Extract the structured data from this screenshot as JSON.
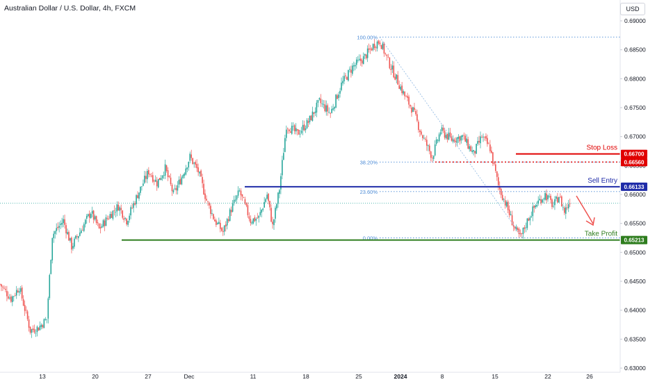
{
  "header": {
    "title": "Australian Dollar / U.S. Dollar, 4h, FXCM",
    "currency_button": "USD"
  },
  "chart_data": {
    "type": "candlestick",
    "symbol": "AUD/USD",
    "timeframe": "4h",
    "ylim": [
      0.63,
      0.69
    ],
    "y_ticks": [
      "0.69000",
      "0.68500",
      "0.68000",
      "0.67500",
      "0.67000",
      "0.66500",
      "0.66000",
      "0.65500",
      "0.65000",
      "0.64500",
      "0.64000",
      "0.63500",
      "0.63000"
    ],
    "x_ticks": [
      "13",
      "20",
      "27",
      "Dec",
      "11",
      "18",
      "25",
      "2024",
      "8",
      "15",
      "22",
      "26"
    ],
    "up_color": "#26a69a",
    "down_color": "#ef5350",
    "close_path": [
      {
        "i": 0,
        "c": 0.6445
      },
      {
        "i": 8,
        "c": 0.642
      },
      {
        "i": 14,
        "c": 0.644
      },
      {
        "i": 22,
        "c": 0.6365
      },
      {
        "i": 28,
        "c": 0.637
      },
      {
        "i": 34,
        "c": 0.6385
      },
      {
        "i": 38,
        "c": 0.653
      },
      {
        "i": 46,
        "c": 0.6555
      },
      {
        "i": 52,
        "c": 0.651
      },
      {
        "i": 58,
        "c": 0.6535
      },
      {
        "i": 66,
        "c": 0.657
      },
      {
        "i": 72,
        "c": 0.654
      },
      {
        "i": 80,
        "c": 0.6565
      },
      {
        "i": 86,
        "c": 0.658
      },
      {
        "i": 92,
        "c": 0.6555
      },
      {
        "i": 100,
        "c": 0.66
      },
      {
        "i": 108,
        "c": 0.664
      },
      {
        "i": 114,
        "c": 0.662
      },
      {
        "i": 120,
        "c": 0.6645
      },
      {
        "i": 126,
        "c": 0.66
      },
      {
        "i": 132,
        "c": 0.663
      },
      {
        "i": 138,
        "c": 0.6665
      },
      {
        "i": 144,
        "c": 0.664
      },
      {
        "i": 150,
        "c": 0.659
      },
      {
        "i": 156,
        "c": 0.6555
      },
      {
        "i": 162,
        "c": 0.6535
      },
      {
        "i": 168,
        "c": 0.6575
      },
      {
        "i": 174,
        "c": 0.6605
      },
      {
        "i": 178,
        "c": 0.658
      },
      {
        "i": 182,
        "c": 0.6555
      },
      {
        "i": 188,
        "c": 0.656
      },
      {
        "i": 194,
        "c": 0.66
      },
      {
        "i": 198,
        "c": 0.6545
      },
      {
        "i": 203,
        "c": 0.661
      },
      {
        "i": 208,
        "c": 0.672
      },
      {
        "i": 216,
        "c": 0.6705
      },
      {
        "i": 224,
        "c": 0.6725
      },
      {
        "i": 232,
        "c": 0.676
      },
      {
        "i": 240,
        "c": 0.674
      },
      {
        "i": 248,
        "c": 0.679
      },
      {
        "i": 256,
        "c": 0.682
      },
      {
        "i": 264,
        "c": 0.6835
      },
      {
        "i": 272,
        "c": 0.686
      },
      {
        "i": 276,
        "c": 0.6865
      },
      {
        "i": 282,
        "c": 0.683
      },
      {
        "i": 288,
        "c": 0.68
      },
      {
        "i": 294,
        "c": 0.677
      },
      {
        "i": 300,
        "c": 0.6745
      },
      {
        "i": 306,
        "c": 0.6705
      },
      {
        "i": 314,
        "c": 0.6665
      },
      {
        "i": 320,
        "c": 0.671
      },
      {
        "i": 328,
        "c": 0.6695
      },
      {
        "i": 336,
        "c": 0.67
      },
      {
        "i": 344,
        "c": 0.667
      },
      {
        "i": 350,
        "c": 0.67
      },
      {
        "i": 356,
        "c": 0.668
      },
      {
        "i": 362,
        "c": 0.6615
      },
      {
        "i": 368,
        "c": 0.658
      },
      {
        "i": 374,
        "c": 0.654
      },
      {
        "i": 378,
        "c": 0.6525
      },
      {
        "i": 384,
        "c": 0.656
      },
      {
        "i": 390,
        "c": 0.6585
      },
      {
        "i": 396,
        "c": 0.66
      },
      {
        "i": 402,
        "c": 0.658
      },
      {
        "i": 406,
        "c": 0.6598
      },
      {
        "i": 410,
        "c": 0.657
      },
      {
        "i": 414,
        "c": 0.659
      }
    ],
    "fibonacci": [
      {
        "label": "100.00%",
        "price": 0.6872
      },
      {
        "label": "38.20%",
        "price": 0.6656
      },
      {
        "label": "23.60%",
        "price": 0.6605
      },
      {
        "label": "0.00%",
        "price": 0.6525
      }
    ],
    "levels": [
      {
        "name": "Stop Loss",
        "label": "0.66700",
        "price": 0.667,
        "color": "#e00000"
      },
      {
        "name": "Sell Entry",
        "label": "0.66133",
        "price": 0.66133,
        "color": "#1e2ba8"
      },
      {
        "name": "Take Profit",
        "label": "0.65213",
        "price": 0.65213,
        "color": "#2e7d1e"
      }
    ],
    "extra_price_labels": [
      {
        "label": "0.66560",
        "price": 0.6656,
        "color": "#e00000"
      }
    ],
    "annotations": [
      "Stop Loss",
      "Sell Entry",
      "Take Profit"
    ]
  }
}
